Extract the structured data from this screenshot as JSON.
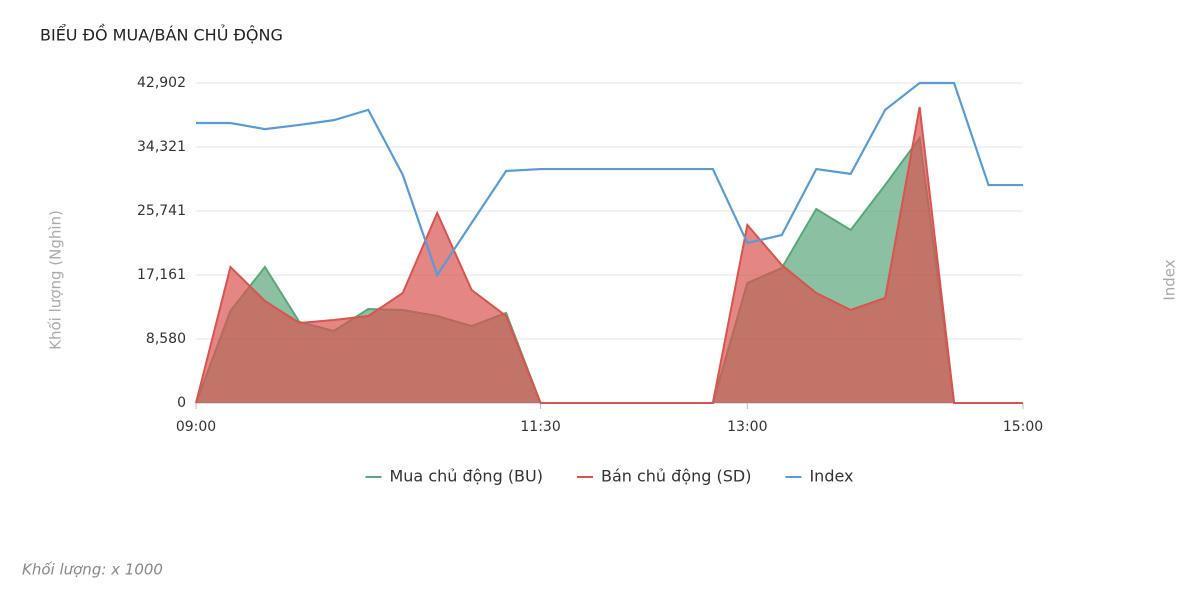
{
  "chart_data": {
    "type": "area",
    "title": "BIỂU ĐỒ MUA/BÁN CHỦ ĐỘNG",
    "y_label": "Khối lượng (Nghìn)",
    "y2_label": "Index",
    "footnote": "Khối lượng: x 1000",
    "x": [
      "09:00",
      "09:15",
      "09:30",
      "09:45",
      "10:00",
      "10:15",
      "10:30",
      "10:45",
      "11:00",
      "11:15",
      "11:30",
      "11:45",
      "12:00",
      "12:15",
      "12:30",
      "12:45",
      "13:00",
      "13:15",
      "13:30",
      "13:45",
      "14:00",
      "14:15",
      "14:30",
      "14:45",
      "15:00"
    ],
    "xlim": [
      "09:00",
      "15:00"
    ],
    "xticks": [
      "09:00",
      "11:30",
      "13:00",
      "15:00"
    ],
    "ylim": [
      0,
      42902
    ],
    "yticks": [
      0,
      {
        "value": 8580,
        "label": "8,580"
      },
      {
        "value": 17161,
        "label": "17,161"
      },
      {
        "value": 25741,
        "label": "25,741"
      },
      {
        "value": 34321,
        "label": "34,321"
      },
      {
        "value": 42902,
        "label": "42,902"
      }
    ],
    "y2lim": [
      0,
      100
    ],
    "grid": true,
    "legend": "bottom",
    "series": [
      {
        "name": "Mua chủ động (BU)",
        "color": "#5aa77a",
        "type": "area",
        "values": [
          0,
          12335,
          18233,
          10860,
          9653,
          12600,
          12470,
          11660,
          10320,
          12070,
          0,
          0,
          0,
          0,
          0,
          0,
          16090,
          18100,
          26010,
          23190,
          29230,
          35530,
          0,
          0,
          0
        ]
      },
      {
        "name": "Bán chủ động (SD)",
        "color": "#d9534f",
        "type": "area",
        "values": [
          0,
          18233,
          13675,
          10726,
          11128,
          11664,
          14748,
          25473,
          15150,
          11660,
          0,
          0,
          0,
          0,
          0,
          0,
          23864,
          18502,
          14748,
          12470,
          14077,
          39685,
          0,
          0,
          0
        ]
      },
      {
        "name": "Index",
        "color": "#5b9bd5",
        "type": "line",
        "axis": "y2",
        "values": [
          87.5,
          87.5,
          85.6,
          86.9,
          88.4,
          91.6,
          71.3,
          40,
          56.3,
          72.5,
          73.1,
          73.1,
          73.1,
          73.1,
          73.1,
          73.1,
          50,
          52.5,
          73.1,
          71.6,
          91.6,
          100,
          100,
          68.1,
          68.1
        ]
      }
    ]
  }
}
